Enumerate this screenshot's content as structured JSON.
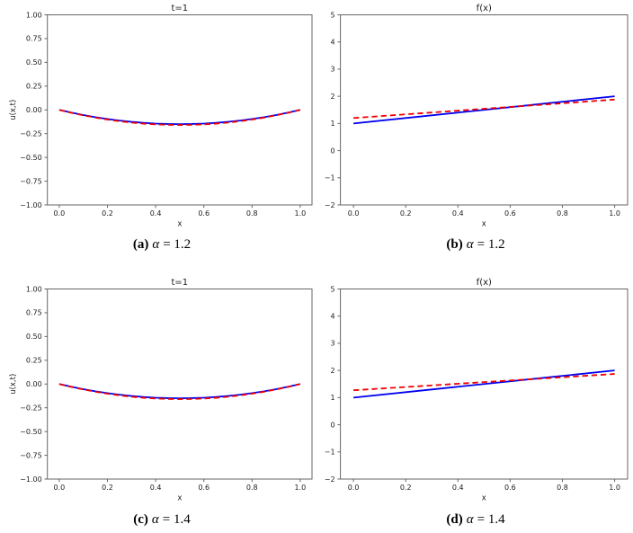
{
  "page": {
    "background": "#ffffff",
    "text_color": "#1c1c1c",
    "axis_color": "#666666"
  },
  "chart_data": [
    {
      "id": "a",
      "type": "line",
      "title": "t=1",
      "xlabel": "x",
      "ylabel": "u(x,t)",
      "xlim": [
        -0.05,
        1.05
      ],
      "ylim": [
        -1.0,
        1.0
      ],
      "grid": false,
      "legend": "none",
      "xticks": [
        0.0,
        0.2,
        0.4,
        0.6,
        0.8,
        1.0
      ],
      "xtick_labels": [
        "0.0",
        "0.2",
        "0.4",
        "0.6",
        "0.8",
        "1.0"
      ],
      "yticks": [
        1.0,
        0.75,
        0.5,
        0.25,
        0.0,
        -0.25,
        -0.5,
        -0.75,
        -1.0
      ],
      "ytick_labels": [
        "1.00",
        "0.75",
        "0.50",
        "0.25",
        "0.00",
        "−0.25",
        "−0.50",
        "−0.75",
        "−1.00"
      ],
      "caption": {
        "label": "(a)",
        "symbol": "α",
        "rest": "= 1.2"
      },
      "series": [
        {
          "name": "blue-solid-line",
          "style": "solid",
          "color": "#0000f0",
          "x": [
            0.0,
            0.05,
            0.1,
            0.15,
            0.2,
            0.25,
            0.3,
            0.35,
            0.4,
            0.45,
            0.5,
            0.55,
            0.6,
            0.65,
            0.7,
            0.75,
            0.8,
            0.85,
            0.9,
            0.95,
            1.0
          ],
          "y": [
            0.0,
            -0.0285,
            -0.054,
            -0.0765,
            -0.096,
            -0.1125,
            -0.126,
            -0.1365,
            -0.144,
            -0.1485,
            -0.15,
            -0.1485,
            -0.144,
            -0.1365,
            -0.126,
            -0.1125,
            -0.096,
            -0.0765,
            -0.054,
            -0.0285,
            0.0
          ]
        },
        {
          "name": "red-dashed-line",
          "style": "dashed",
          "color": "#f00000",
          "x": [
            0.0,
            0.05,
            0.1,
            0.15,
            0.2,
            0.25,
            0.3,
            0.35,
            0.4,
            0.45,
            0.5,
            0.55,
            0.6,
            0.65,
            0.7,
            0.75,
            0.8,
            0.85,
            0.9,
            0.95,
            1.0
          ],
          "y": [
            0.0,
            -0.0302,
            -0.0572,
            -0.0811,
            -0.1018,
            -0.1192,
            -0.1336,
            -0.1447,
            -0.1526,
            -0.1574,
            -0.159,
            -0.1574,
            -0.1526,
            -0.1447,
            -0.1336,
            -0.1192,
            -0.1018,
            -0.0811,
            -0.0572,
            -0.0302,
            0.0
          ]
        }
      ]
    },
    {
      "id": "b",
      "type": "line",
      "title": "f(x)",
      "xlabel": "x",
      "ylabel": "",
      "xlim": [
        -0.05,
        1.05
      ],
      "ylim": [
        -2,
        5
      ],
      "grid": false,
      "legend": "none",
      "xticks": [
        0.0,
        0.2,
        0.4,
        0.6,
        0.8,
        1.0
      ],
      "xtick_labels": [
        "0.0",
        "0.2",
        "0.4",
        "0.6",
        "0.8",
        "1.0"
      ],
      "yticks": [
        5,
        4,
        3,
        2,
        1,
        0,
        -1,
        -2
      ],
      "ytick_labels": [
        "5",
        "4",
        "3",
        "2",
        "1",
        "0",
        "−1",
        "−2"
      ],
      "caption": {
        "label": "(b)",
        "symbol": "α",
        "rest": "= 1.2"
      },
      "series": [
        {
          "name": "blue-solid-line",
          "style": "solid",
          "color": "#0000f0",
          "x": [
            0.0,
            0.25,
            0.5,
            0.75,
            1.0
          ],
          "y": [
            1.0,
            1.25,
            1.5,
            1.75,
            2.0
          ]
        },
        {
          "name": "red-dashed-line",
          "style": "dashed",
          "color": "#f00000",
          "x": [
            0.0,
            0.25,
            0.5,
            0.75,
            1.0
          ],
          "y": [
            1.2,
            1.37,
            1.54,
            1.71,
            1.88
          ]
        }
      ]
    },
    {
      "id": "c",
      "type": "line",
      "title": "t=1",
      "xlabel": "x",
      "ylabel": "u(x,t)",
      "xlim": [
        -0.05,
        1.05
      ],
      "ylim": [
        -1.0,
        1.0
      ],
      "grid": false,
      "legend": "none",
      "xticks": [
        0.0,
        0.2,
        0.4,
        0.6,
        0.8,
        1.0
      ],
      "xtick_labels": [
        "0.0",
        "0.2",
        "0.4",
        "0.6",
        "0.8",
        "1.0"
      ],
      "yticks": [
        1.0,
        0.75,
        0.5,
        0.25,
        0.0,
        -0.25,
        -0.5,
        -0.75,
        -1.0
      ],
      "ytick_labels": [
        "1.00",
        "0.75",
        "0.50",
        "0.25",
        "0.00",
        "−0.25",
        "−0.50",
        "−0.75",
        "−1.00"
      ],
      "caption": {
        "label": "(c)",
        "symbol": "α",
        "rest": "= 1.4"
      },
      "series": [
        {
          "name": "blue-solid-line",
          "style": "solid",
          "color": "#0000f0",
          "x": [
            0.0,
            0.05,
            0.1,
            0.15,
            0.2,
            0.25,
            0.3,
            0.35,
            0.4,
            0.45,
            0.5,
            0.55,
            0.6,
            0.65,
            0.7,
            0.75,
            0.8,
            0.85,
            0.9,
            0.95,
            1.0
          ],
          "y": [
            0.0,
            -0.0285,
            -0.054,
            -0.0765,
            -0.096,
            -0.1125,
            -0.126,
            -0.1365,
            -0.144,
            -0.1485,
            -0.15,
            -0.1485,
            -0.144,
            -0.1365,
            -0.126,
            -0.1125,
            -0.096,
            -0.0765,
            -0.054,
            -0.0285,
            0.0
          ]
        },
        {
          "name": "red-dashed-line",
          "style": "dashed",
          "color": "#f00000",
          "x": [
            0.0,
            0.05,
            0.1,
            0.15,
            0.2,
            0.25,
            0.3,
            0.35,
            0.4,
            0.45,
            0.5,
            0.55,
            0.6,
            0.65,
            0.7,
            0.75,
            0.8,
            0.85,
            0.9,
            0.95,
            1.0
          ],
          "y": [
            0.0,
            -0.0302,
            -0.0572,
            -0.0811,
            -0.1018,
            -0.1192,
            -0.1336,
            -0.1447,
            -0.1526,
            -0.1574,
            -0.159,
            -0.1574,
            -0.1526,
            -0.1447,
            -0.1336,
            -0.1192,
            -0.1018,
            -0.0811,
            -0.0572,
            -0.0302,
            0.0
          ]
        }
      ]
    },
    {
      "id": "d",
      "type": "line",
      "title": "f(x)",
      "xlabel": "x",
      "ylabel": "",
      "xlim": [
        -0.05,
        1.05
      ],
      "ylim": [
        -2,
        5
      ],
      "grid": false,
      "legend": "none",
      "xticks": [
        0.0,
        0.2,
        0.4,
        0.6,
        0.8,
        1.0
      ],
      "xtick_labels": [
        "0.0",
        "0.2",
        "0.4",
        "0.6",
        "0.8",
        "1.0"
      ],
      "yticks": [
        5,
        4,
        3,
        2,
        1,
        0,
        -1,
        -2
      ],
      "ytick_labels": [
        "5",
        "4",
        "3",
        "2",
        "1",
        "0",
        "−1",
        "−2"
      ],
      "caption": {
        "label": "(d)",
        "symbol": "α",
        "rest": "= 1.4"
      },
      "series": [
        {
          "name": "blue-solid-line",
          "style": "solid",
          "color": "#0000f0",
          "x": [
            0.0,
            0.25,
            0.5,
            0.75,
            1.0
          ],
          "y": [
            1.0,
            1.25,
            1.5,
            1.75,
            2.0
          ]
        },
        {
          "name": "red-dashed-line",
          "style": "dashed",
          "color": "#f00000",
          "x": [
            0.0,
            0.25,
            0.5,
            0.75,
            1.0
          ],
          "y": [
            1.27,
            1.42,
            1.57,
            1.72,
            1.87
          ]
        }
      ]
    }
  ]
}
